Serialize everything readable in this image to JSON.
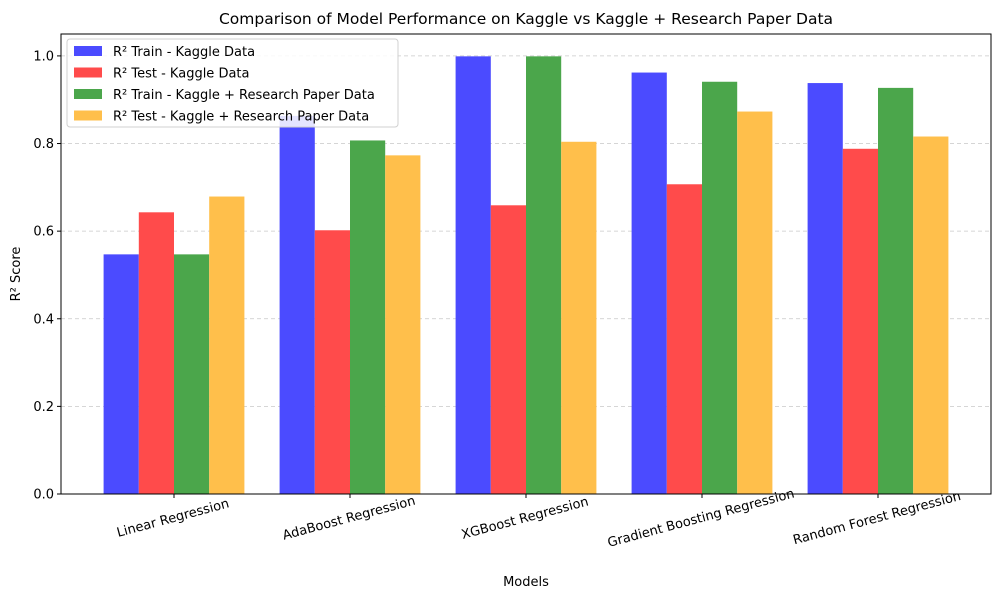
{
  "chart_data": {
    "type": "bar",
    "title": "Comparison of Model Performance on Kaggle vs Kaggle + Research Paper Data",
    "xlabel": "Models",
    "ylabel": "R² Score",
    "ylim": [
      0,
      1.05
    ],
    "yticks": [
      0.0,
      0.2,
      0.4,
      0.6,
      0.8,
      1.0
    ],
    "ytick_labels": [
      "0.0",
      "0.2",
      "0.4",
      "0.6",
      "0.8",
      "1.0"
    ],
    "grid": "y-dashed",
    "legend_position": "top-left",
    "categories": [
      "Linear Regression",
      "AdaBoost Regression",
      "XGBoost Regression",
      "Gradient Boosting Regression",
      "Random Forest Regression"
    ],
    "series": [
      {
        "name": "R² Train - Kaggle Data",
        "color": "#4b4bff",
        "values": [
          0.547,
          0.863,
          0.999,
          0.962,
          0.938
        ]
      },
      {
        "name": "R² Test - Kaggle Data",
        "color": "#ff4b4b",
        "values": [
          0.643,
          0.602,
          0.659,
          0.707,
          0.788
        ]
      },
      {
        "name": "R² Train - Kaggle + Research Paper Data",
        "color": "#4ba64b",
        "values": [
          0.547,
          0.807,
          0.999,
          0.941,
          0.927
        ]
      },
      {
        "name": "R² Test - Kaggle + Research Paper Data",
        "color": "#ffbf4b",
        "values": [
          0.679,
          0.773,
          0.804,
          0.873,
          0.816
        ]
      }
    ]
  }
}
